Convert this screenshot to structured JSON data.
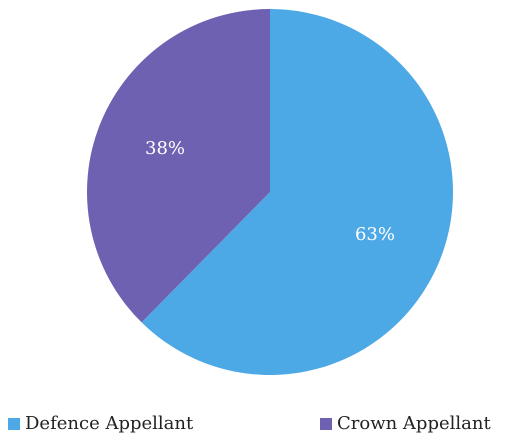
{
  "chart_data": {
    "type": "pie",
    "title": "",
    "slices": [
      {
        "label": "Defence Appellant",
        "value": 63,
        "display": "63%",
        "color": "#4DA9E6"
      },
      {
        "label": "Crown Appellant",
        "value": 38,
        "display": "38%",
        "color": "#6E61B2"
      }
    ],
    "start_angle_deg": 0,
    "direction": "clockwise",
    "legend_position": "bottom",
    "label_color": "#ffffff"
  }
}
